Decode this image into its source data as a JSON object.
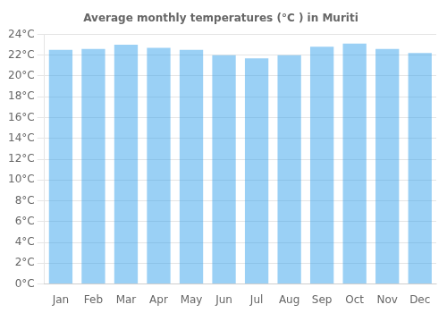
{
  "chart_data": {
    "type": "bar",
    "title": "Average monthly temperatures (°C ) in Muriti",
    "categories": [
      "Jan",
      "Feb",
      "Mar",
      "Apr",
      "May",
      "Jun",
      "Jul",
      "Aug",
      "Sep",
      "Oct",
      "Nov",
      "Dec"
    ],
    "values": [
      22.5,
      22.6,
      23.0,
      22.7,
      22.5,
      22.0,
      21.7,
      22.0,
      22.8,
      23.1,
      22.6,
      22.2
    ],
    "ylim": [
      0,
      24
    ],
    "yticks": [
      {
        "value": 0,
        "label": "0°C"
      },
      {
        "value": 2,
        "label": "2°C"
      },
      {
        "value": 4,
        "label": "4°C"
      },
      {
        "value": 6,
        "label": "6°C"
      },
      {
        "value": 8,
        "label": "8°C"
      },
      {
        "value": 10,
        "label": "10°C"
      },
      {
        "value": 12,
        "label": "12°C"
      },
      {
        "value": 14,
        "label": "14°C"
      },
      {
        "value": 16,
        "label": "16°C"
      },
      {
        "value": 18,
        "label": "18°C"
      },
      {
        "value": 20,
        "label": "20°C"
      },
      {
        "value": 22,
        "label": "22°C"
      },
      {
        "value": 24,
        "label": "24°C"
      }
    ],
    "grid": true
  }
}
